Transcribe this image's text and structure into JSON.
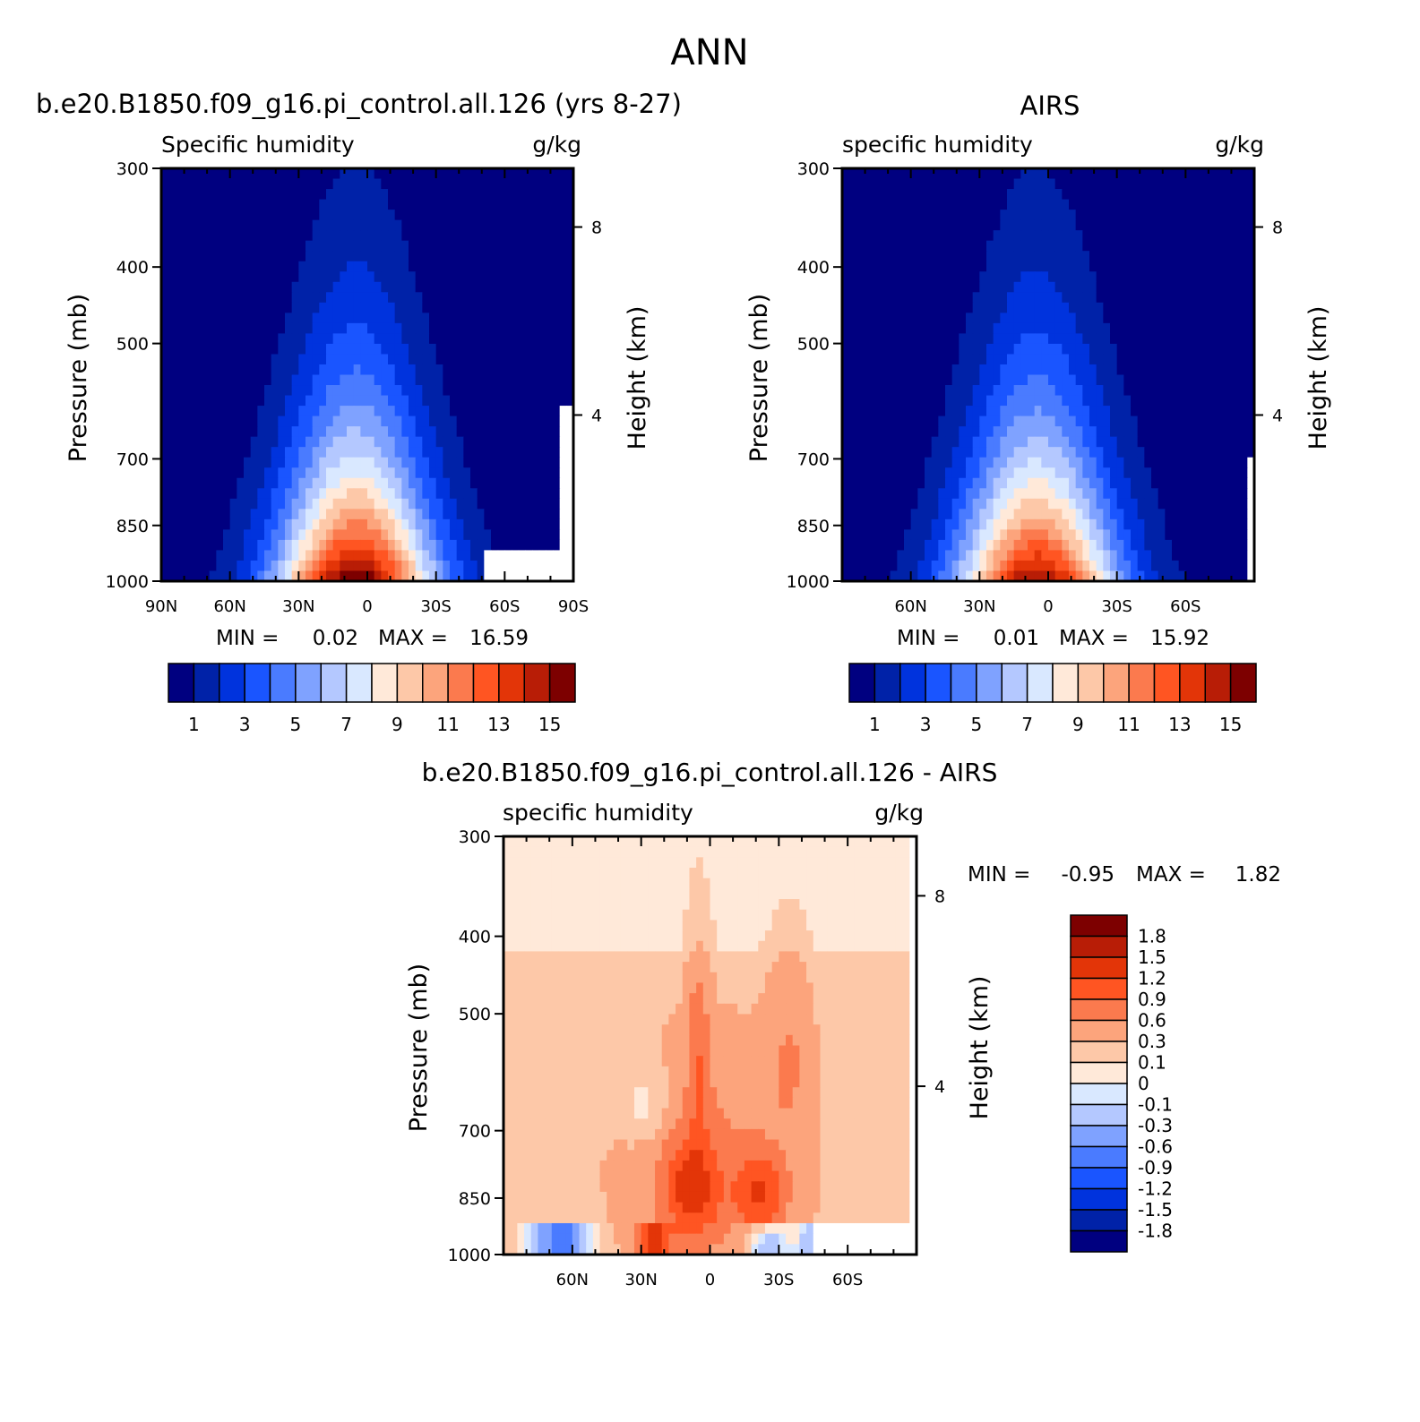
{
  "figure": {
    "title": "ANN",
    "colors": {
      "abs_levels": [
        "#000080",
        "#0022a8",
        "#0033dd",
        "#1a55ff",
        "#4a7bff",
        "#7fa2ff",
        "#b4c8ff",
        "#d9e8ff",
        "#ffe9d9",
        "#fdc8a8",
        "#fca47c",
        "#fb7a4e",
        "#ff5522",
        "#e33508",
        "#b81d06",
        "#7d0000"
      ],
      "diff_levels": [
        "#000080",
        "#0022a8",
        "#0033dd",
        "#1a55ff",
        "#4a7bff",
        "#7fa2ff",
        "#b4c8ff",
        "#d9e8ff",
        "#ffe9d9",
        "#fdc8a8",
        "#fca47c",
        "#fb7a4e",
        "#ff5522",
        "#e33508",
        "#b81d06",
        "#7d0000"
      ],
      "missing": "#ffffff"
    }
  },
  "chart_data": [
    {
      "type": "heatmap",
      "panel_title": "b.e20.B1850.f09_g16.pi_control.all.126 (yrs 8-27)",
      "variable": "Specific humidity",
      "units": "g/kg",
      "ylabel": "Pressure (mb)",
      "ylabel_right": "Height (km)",
      "x_ticks": [
        "90N",
        "60N",
        "30N",
        "0",
        "30S",
        "60S",
        "90S"
      ],
      "x_range": [
        90,
        -90
      ],
      "y_ticks": [
        300,
        400,
        500,
        700,
        850,
        1000
      ],
      "y_range": [
        1000,
        300
      ],
      "y_scale": "log",
      "right_ticks": [
        "8",
        "4"
      ],
      "stats": {
        "min_label": "MIN =",
        "min": "0.02",
        "max_label": "MAX =",
        "max": "16.59"
      },
      "max_value": 16.59,
      "peak_lat": 5,
      "colorbar_labels": [
        "1",
        "3",
        "5",
        "7",
        "9",
        "11",
        "13",
        "15"
      ],
      "missing_region": "surface below ~900 mb poleward of 50S"
    },
    {
      "type": "heatmap",
      "panel_title": "AIRS",
      "variable": "specific humidity",
      "units": "g/kg",
      "ylabel": "Pressure (mb)",
      "ylabel_right": "Height (km)",
      "x_ticks": [
        "60N",
        "30N",
        "0",
        "30S",
        "60S"
      ],
      "x_range": [
        90,
        -90
      ],
      "y_ticks": [
        300,
        400,
        500,
        700,
        850,
        1000
      ],
      "y_range": [
        1000,
        300
      ],
      "y_scale": "log",
      "right_ticks": [
        "8",
        "4"
      ],
      "stats": {
        "min_label": "MIN =",
        "min": "0.01",
        "max_label": "MAX =",
        "max": "15.92"
      },
      "max_value": 15.92,
      "peak_lat": 5,
      "colorbar_labels": [
        "1",
        "3",
        "5",
        "7",
        "9",
        "11",
        "13",
        "15"
      ]
    },
    {
      "type": "heatmap",
      "panel_title": "b.e20.B1850.f09_g16.pi_control.all.126 - AIRS",
      "variable": "specific humidity",
      "units": "g/kg",
      "ylabel": "Pressure (mb)",
      "ylabel_right": "Height (km)",
      "x_ticks": [
        "60N",
        "30N",
        "0",
        "30S",
        "60S"
      ],
      "x_range": [
        90,
        -90
      ],
      "y_ticks": [
        300,
        400,
        500,
        700,
        850,
        1000
      ],
      "y_range": [
        1000,
        300
      ],
      "y_scale": "log",
      "right_ticks": [
        "8",
        "4"
      ],
      "stats": {
        "min_label": "MIN =",
        "min": "-0.95",
        "max_label": "MAX =",
        "max": "1.82"
      },
      "levels": [
        -1.8,
        -1.5,
        -1.2,
        -0.9,
        -0.6,
        -0.3,
        -0.1,
        0,
        0.1,
        0.3,
        0.6,
        0.9,
        1.2,
        1.5,
        1.8
      ],
      "colorbar_labels": [
        "1.8",
        "1.5",
        "1.2",
        "0.9",
        "0.6",
        "0.3",
        "0.1",
        "0",
        "-0.1",
        "-0.3",
        "-0.6",
        "-0.9",
        "-1.2",
        "-1.5",
        "-1.8"
      ]
    }
  ]
}
